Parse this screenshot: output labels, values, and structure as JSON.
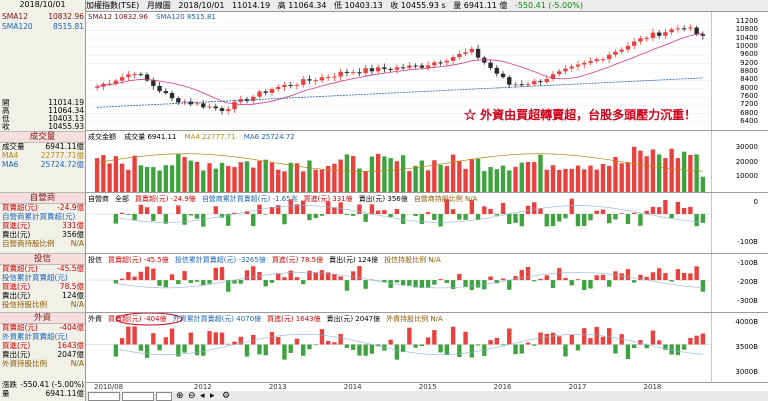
{
  "date": "2018/10/01",
  "title": {
    "index_name": "加權指數(TSE)",
    "period": "月線圖",
    "date": "2018/10/01",
    "values": [
      "11014.19",
      "高 11064.34",
      "低 10403.13",
      "收 10455.93 s",
      "量 6941.11 億",
      "-550.41 (-5.00%)"
    ]
  },
  "left": {
    "sma12_label": "SMA12",
    "sma12_value": "10832.96",
    "sma120_label": "SMA120",
    "sma120_value": "8515.81",
    "open_label": "開",
    "open_value": "11014.19",
    "high_label": "高",
    "high_value": "11064.34",
    "low_label": "低",
    "low_value": "10403.13",
    "close_label": "收",
    "close_value": "10455.93",
    "volume_header": "成交量",
    "vol_label": "成交量",
    "vol_value": "6941.11億",
    "ma4_label": "MA4",
    "ma4_value": "22777.71億",
    "ma6_label": "MA6",
    "ma6_value": "25724.72億",
    "dealer_header": "自營商",
    "dealer_net_label": "買賣超(元)",
    "dealer_net_value": "-24.9億",
    "dealer_cum_label": "自營商累計買賣超(元)",
    "dealer_buy_label": "買進(元)",
    "dealer_buy_value": "331億",
    "dealer_sell_label": "賣出(元)",
    "dealer_sell_value": "356億",
    "dealer_ratio_label": "自營商持股比例",
    "dealer_ratio_value": "N/A",
    "trust_header": "投信",
    "trust_net_label": "買賣超(元)",
    "trust_net_value": "-45.5億",
    "trust_cum_label": "投信累計買賣超(元)",
    "trust_buy_label": "買進(元)",
    "trust_buy_value": "78.5億",
    "trust_sell_label": "賣出(元)",
    "trust_sell_value": "124億",
    "trust_ratio_label": "投信持股比例",
    "trust_ratio_value": "N/A",
    "foreign_header": "外資",
    "foreign_net_label": "買賣超(元)",
    "foreign_net_value": "-404億",
    "foreign_cum_label": "外資累計買賣超(元)",
    "foreign_buy_label": "買進(元)",
    "foreign_buy_value": "1643億",
    "foreign_sell_label": "賣出(元)",
    "foreign_sell_value": "2047億",
    "foreign_ratio_label": "外資持股比例",
    "foreign_ratio_value": "N/A",
    "change_label": "漲跌",
    "change_value": "-550.41 (-5.00%)",
    "qty_label": "量",
    "qty_value": "6941.11億"
  },
  "chart": {
    "sma12": "SMA12 10832.96",
    "sma120": "SMA120 8515.81",
    "price_ticks": [
      "11200",
      "10800",
      "10400",
      "10000",
      "9600",
      "9200",
      "8800",
      "8400",
      "8000",
      "7600",
      "7200",
      "6800",
      "6400"
    ],
    "callout": "☆ 外資由買超轉賣超，台股多頭壓力沉重！",
    "vol_label_a": "成交金額",
    "vol_label_b": "成交量 6941.11",
    "vol_ma4": "MA4 22777.71",
    "vol_ma6": "MA6 25724.72",
    "vol_ticks": [
      "30000",
      "20000",
      "10000"
    ],
    "dealer_labels": [
      "自營商",
      "全部",
      "買賣超(元) -24.9億",
      "自營商累計買賣超(元) -1.65兆",
      "買進(元) 331億",
      "賣出(元) 356億",
      "自營商持股比例 N/A"
    ],
    "dealer_ticks": [
      "0",
      "-100B"
    ],
    "trust_labels": [
      "投信",
      "買賣超(元) -45.5億",
      "投信累計買賣超(元) -3265億",
      "買進(元) 78.5億",
      "賣出(元) 124億",
      "投信持股比例 N/A"
    ],
    "trust_ticks": [
      "-100B",
      "-200B",
      "-300B"
    ],
    "foreign_labels": [
      "外資",
      "買賣超(元) -404億",
      "外資累計買賣超(元) 4070億",
      "買進(元) 1643億",
      "賣出(元) 2047億",
      "外資持股比例 N/A"
    ],
    "foreign_ticks": [
      "4000B",
      "3500B",
      "3000B"
    ],
    "years": [
      "2010/08",
      "2012",
      "2013",
      "2014",
      "2015",
      "2016",
      "2017",
      "2018"
    ]
  },
  "colors": {
    "up": "#e8413e",
    "down": "#2b2b2b",
    "buy": "#e8413e",
    "sell": "#3ea33e",
    "accent": "#d0021b"
  }
}
